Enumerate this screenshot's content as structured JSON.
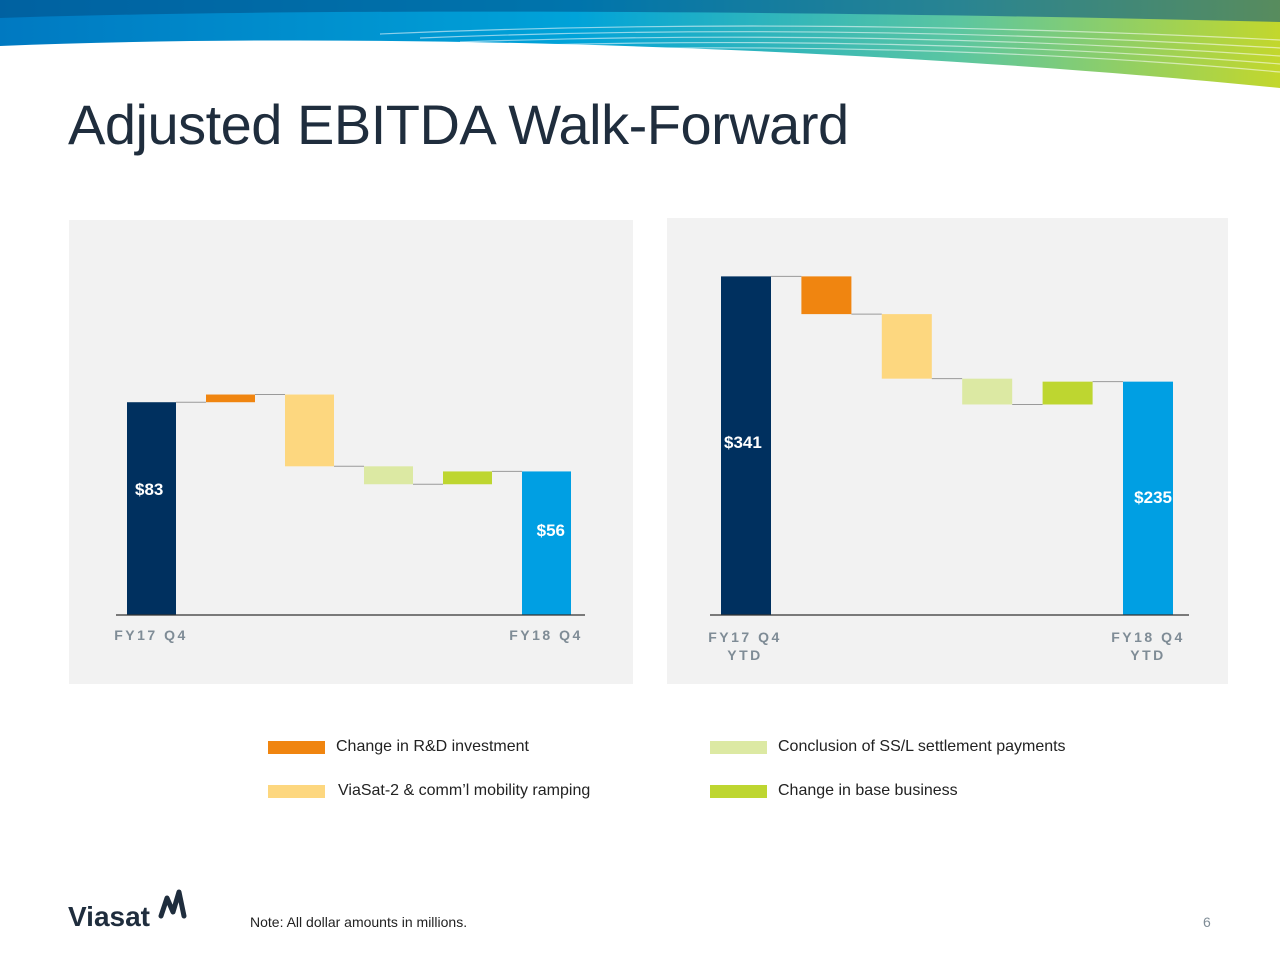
{
  "title": "Adjusted EBITDA Walk-Forward",
  "brand": "Viasat",
  "colors": {
    "start_bar": "#00305f",
    "end_bar": "#009fe3",
    "rd": "#f08510",
    "viasat2": "#fdd77f",
    "ssl": "#dce9a3",
    "base": "#bed630",
    "panel_bg": "#f2f2f2",
    "connector": "#9a9a9a"
  },
  "legend": [
    {
      "key": "rd",
      "label": "Change in R&D investment"
    },
    {
      "key": "ssl",
      "label": "Conclusion of SS/L settlement payments"
    },
    {
      "key": "viasat2",
      "label": "ViaSat-2 & comm’l mobility ramping"
    },
    {
      "key": "base",
      "label": "Change in base business"
    }
  ],
  "chart_data": [
    {
      "type": "waterfall",
      "title": "",
      "start": {
        "label": "FY17 Q4",
        "value": 83,
        "value_label": "$83"
      },
      "end": {
        "label": "FY18 Q4",
        "value": 56,
        "value_label": "$56"
      },
      "steps": [
        {
          "key": "rd",
          "value": 3
        },
        {
          "key": "viasat2",
          "value": -28
        },
        {
          "key": "ssl",
          "value": -7
        },
        {
          "key": "base",
          "value": 5
        }
      ],
      "ylim": [
        0,
        110
      ]
    },
    {
      "type": "waterfall",
      "title": "",
      "start": {
        "label": "FY17 Q4 YTD",
        "value": 341,
        "value_label": "$341"
      },
      "end": {
        "label": "FY18 Q4 YTD",
        "value": 235,
        "value_label": "$235"
      },
      "steps": [
        {
          "key": "rd",
          "value": -38
        },
        {
          "key": "viasat2",
          "value": -65
        },
        {
          "key": "ssl",
          "value": -26
        },
        {
          "key": "base",
          "value": 23
        }
      ],
      "ylim": [
        0,
        390
      ]
    }
  ],
  "footer": {
    "note": "Note: All dollar amounts in millions.",
    "page": "6"
  }
}
